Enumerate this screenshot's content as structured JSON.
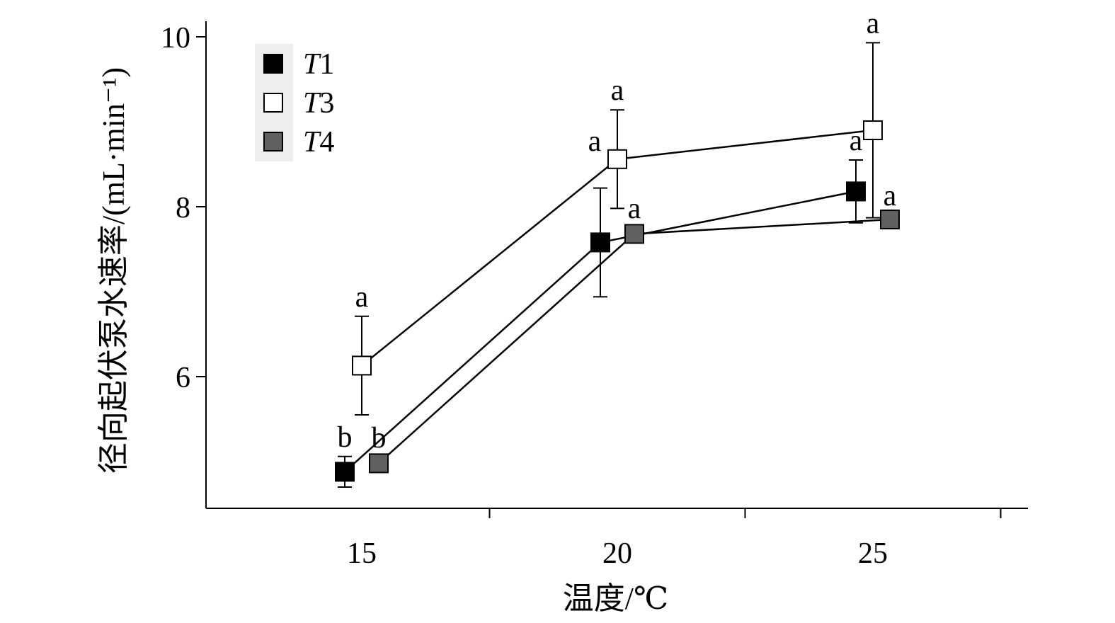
{
  "chart_data": {
    "type": "line",
    "xlabel": "温度/℃",
    "ylabel": "径向起伏泵水速率/(mL·min⁻¹)",
    "x": [
      15,
      20,
      25
    ],
    "x_ticks": [
      15,
      20,
      25
    ],
    "y_ticks": [
      6,
      8,
      10
    ],
    "ylim": [
      4.6,
      10.2
    ],
    "legend_position": "top-left",
    "grid": false,
    "series": [
      {
        "name": "T1",
        "marker_color": "#000000",
        "values": [
          4.88,
          7.58,
          8.18
        ],
        "error": [
          0.18,
          0.64,
          0.37
        ],
        "labels": [
          "b",
          "",
          "a"
        ]
      },
      {
        "name": "T3",
        "marker_color": "#ffffff",
        "values": [
          6.13,
          8.56,
          8.9
        ],
        "error": [
          0.58,
          0.58,
          1.03
        ],
        "labels": [
          "a",
          "a",
          "a"
        ]
      },
      {
        "name": "T4",
        "marker_color": "#606060",
        "values": [
          4.98,
          7.68,
          7.85
        ],
        "error": [
          0.07,
          0.07,
          0.05
        ],
        "labels": [
          "b",
          "a",
          "a"
        ]
      }
    ],
    "extra_labels": [
      {
        "text": "a",
        "series": "T1",
        "x": 20
      }
    ]
  }
}
